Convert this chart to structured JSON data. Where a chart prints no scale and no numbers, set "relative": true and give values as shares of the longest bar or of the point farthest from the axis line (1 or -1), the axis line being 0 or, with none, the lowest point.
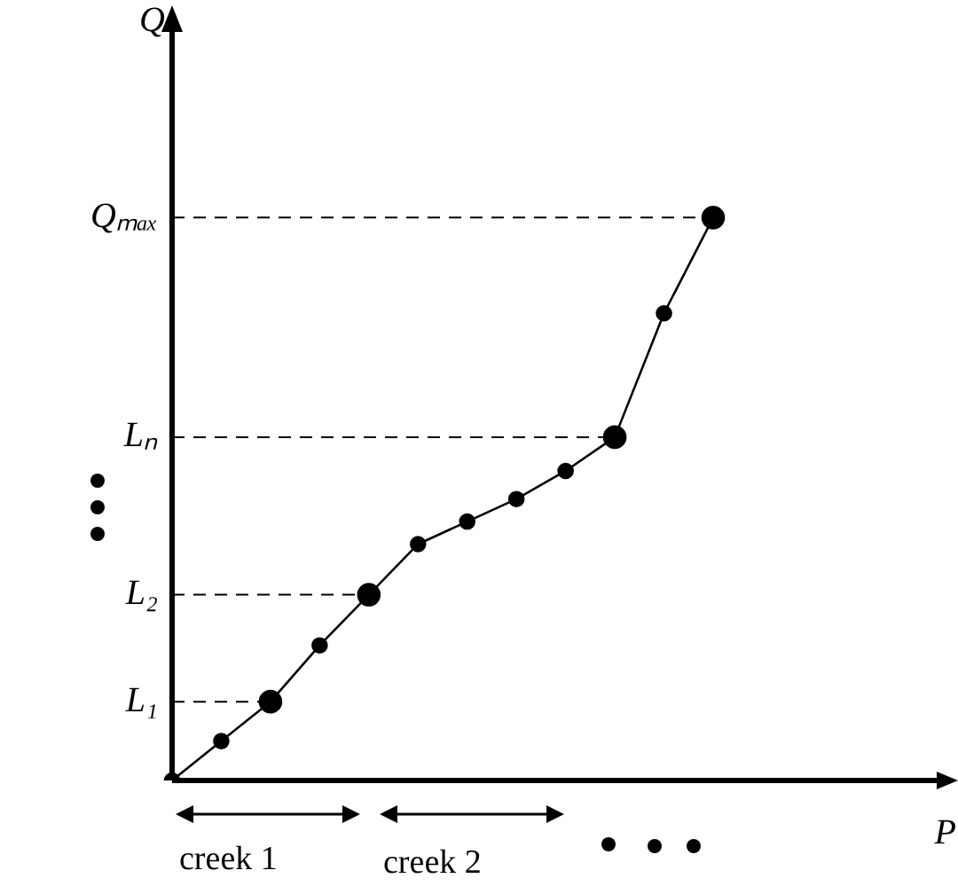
{
  "chart_data": {
    "type": "line",
    "marker": "circle",
    "color": "#000000",
    "categories": [
      null,
      null,
      null,
      null,
      null,
      null,
      null,
      null,
      null,
      null,
      null,
      null
    ],
    "values": [
      0,
      0.07,
      0.14,
      0.24,
      0.33,
      0.42,
      0.46,
      0.5,
      0.55,
      0.61,
      0.83,
      1
    ],
    "relative": true,
    "ref_lines": [
      {
        "axis": "y",
        "value": 0.14,
        "label": "L₁",
        "line_style": "dashed"
      },
      {
        "axis": "y",
        "value": 0.33,
        "label": "L₂",
        "line_style": "dashed"
      },
      {
        "axis": "y",
        "value": 0.61,
        "label": "Lₙ",
        "line_style": "dashed"
      },
      {
        "axis": "y",
        "value": 1,
        "label": "Qₘₐₓ",
        "line_style": "dashed"
      }
    ],
    "annotations": [
      "creek 1",
      "creek 2",
      "P",
      "Q"
    ]
  }
}
